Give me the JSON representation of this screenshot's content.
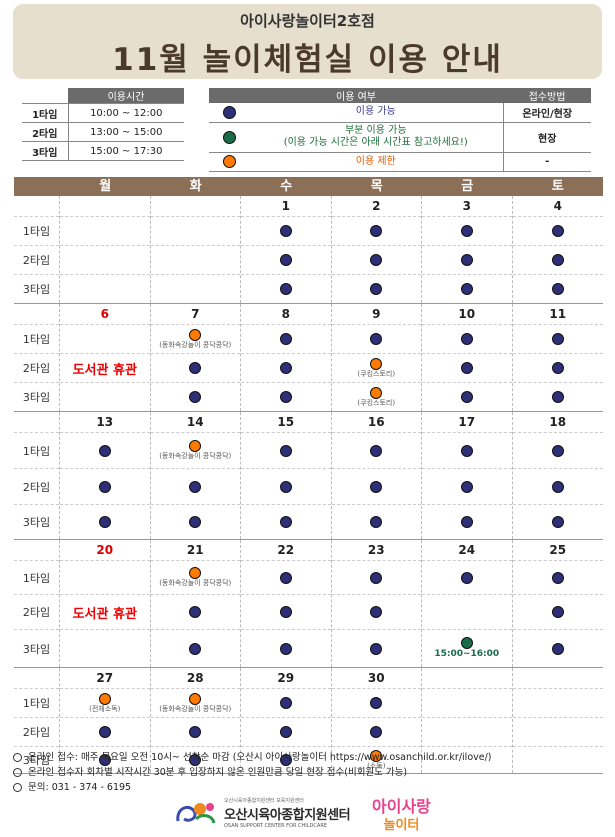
{
  "banner": {
    "subtitle": "아이사랑놀이터2호점",
    "title": "11월 놀이체험실 이용 안내"
  },
  "time_table": {
    "header": "이용시간",
    "rows": [
      {
        "slot": "1타임",
        "time": "10:00 ~ 12:00"
      },
      {
        "slot": "2타임",
        "time": "13:00 ~ 15:00"
      },
      {
        "slot": "3타임",
        "time": "15:00 ~ 17:30"
      }
    ]
  },
  "legend": {
    "header_usage": "이용 여부",
    "header_method": "접수방법",
    "rows": [
      {
        "color": "navy",
        "text": "이용 가능",
        "sub": "",
        "method": "온라인/현장"
      },
      {
        "color": "green",
        "text": "부분 이용 가능",
        "sub": "(이용 가능 시간은 아래 시간표 참고하세요!)",
        "method": "현장"
      },
      {
        "color": "orange",
        "text": "이용 제한",
        "sub": "",
        "method": "-"
      }
    ]
  },
  "calendar": {
    "days": [
      "월",
      "화",
      "수",
      "목",
      "금",
      "토"
    ],
    "slot_labels": [
      "1타임",
      "2타임",
      "3타임"
    ],
    "closed_label": "도서관 휴관",
    "green_time": "15:00~16:00",
    "weeks": [
      {
        "dates": [
          "",
          "",
          "1",
          "2",
          "3",
          "4"
        ],
        "slots": [
          [
            "",
            "",
            "n",
            "n",
            "n",
            "n"
          ],
          [
            "",
            "",
            "n",
            "n",
            "n",
            "n"
          ],
          [
            "",
            "",
            "n",
            "n",
            "n",
            "n"
          ]
        ],
        "notes": [
          [
            "",
            "",
            "",
            "",
            "",
            ""
          ],
          [
            "",
            "",
            "",
            "",
            "",
            ""
          ],
          [
            "",
            "",
            "",
            "",
            "",
            ""
          ]
        ]
      },
      {
        "dates": [
          "6",
          "7",
          "8",
          "9",
          "10",
          "11"
        ],
        "slots": [
          [
            "c",
            "o",
            "n",
            "n",
            "n",
            "n"
          ],
          [
            "c",
            "n",
            "n",
            "o",
            "n",
            "n"
          ],
          [
            "c",
            "n",
            "n",
            "o",
            "n",
            "n"
          ]
        ],
        "notes": [
          [
            "",
            "(동화속강놀이 콩닥콩닥)",
            "",
            "",
            "",
            ""
          ],
          [
            "",
            "",
            "",
            "(쿠킹스토리)",
            "",
            ""
          ],
          [
            "",
            "",
            "",
            "(쿠킹스토리)",
            "",
            ""
          ]
        ]
      },
      {
        "dates": [
          "13",
          "14",
          "15",
          "16",
          "17",
          "18"
        ],
        "slots": [
          [
            "n",
            "o",
            "n",
            "n",
            "n",
            "n"
          ],
          [
            "n",
            "n",
            "n",
            "n",
            "n",
            "n"
          ],
          [
            "n",
            "n",
            "n",
            "n",
            "n",
            "n"
          ]
        ],
        "notes": [
          [
            "",
            "(동화속강놀이 콩닥콩닥)",
            "",
            "",
            "",
            ""
          ],
          [
            "",
            "",
            "",
            "",
            "",
            ""
          ],
          [
            "",
            "",
            "",
            "",
            "",
            ""
          ]
        ]
      },
      {
        "dates": [
          "20",
          "21",
          "22",
          "23",
          "24",
          "25"
        ],
        "slots": [
          [
            "c",
            "o",
            "n",
            "n",
            "n",
            "n"
          ],
          [
            "c",
            "n",
            "n",
            "n",
            "",
            "n"
          ],
          [
            "c",
            "n",
            "n",
            "n",
            "g",
            "n"
          ]
        ],
        "notes": [
          [
            "",
            "(동화속강놀이 콩닥콩닥)",
            "",
            "",
            "",
            ""
          ],
          [
            "",
            "",
            "",
            "",
            "",
            ""
          ],
          [
            "",
            "",
            "",
            "",
            "",
            ""
          ]
        ]
      },
      {
        "dates": [
          "27",
          "28",
          "29",
          "30",
          "",
          ""
        ],
        "slots": [
          [
            "o",
            "o",
            "n",
            "n",
            "",
            ""
          ],
          [
            "n",
            "n",
            "n",
            "n",
            "",
            ""
          ],
          [
            "n",
            "n",
            "n",
            "o",
            "",
            ""
          ]
        ],
        "notes": [
          [
            "(전체소독)",
            "(동화속강놀이 콩닥콩닥)",
            "",
            "",
            "",
            ""
          ],
          [
            "",
            "",
            "",
            "",
            "",
            ""
          ],
          [
            "",
            "",
            "",
            "(소독)",
            "",
            ""
          ]
        ]
      }
    ]
  },
  "footer": [
    "온라인 접수: 매주 목요일 오전 10시~ 선착순 마감 (오산시 아이사랑놀이터 https://www.osanchild.or.kr/ilove/)",
    "온라인 접수자 회차별 시작시간 30분 후 입장하지 않은 인원만큼 당일 현장 접수(비회원도 가능)",
    "문의: 031 - 374 - 6195"
  ],
  "logos": {
    "center_small": "오산시육아종합지원센터 보육지원센터",
    "center_name": "오산시육아종합지원센터",
    "center_eng": "OSAN SUPPORT CENTER FOR CHILDCARE",
    "play_top": "아이사랑",
    "play_bottom": "놀이터"
  },
  "colors": {
    "navy": "#2d2f77",
    "green": "#1a6b47",
    "orange": "#ff7a00",
    "header_brown": "#8c6f57",
    "banner_bg": "#e6dfce"
  }
}
